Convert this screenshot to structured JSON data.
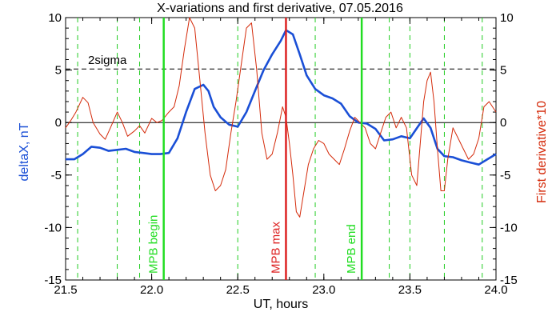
{
  "chart_data": {
    "type": "line",
    "title": "X-variations and first derivative, 07.05.2016",
    "xlabel": "UT, hours",
    "ylabel_left": "deltaX, nT",
    "ylabel_right": "First derivative*10",
    "xlim": [
      21.5,
      24.0
    ],
    "ylim": [
      -15,
      10
    ],
    "x_ticks": [
      21.5,
      22.0,
      22.5,
      23.0,
      23.5,
      24.0
    ],
    "x_tick_labels": [
      "21.5",
      "22.0",
      "22.5",
      "23.0",
      "23.5",
      "24.0"
    ],
    "y_ticks": [
      -15,
      -10,
      -5,
      0,
      5,
      10
    ],
    "y_tick_labels_left": [
      "-15",
      "-10",
      "-5",
      "0",
      "5",
      "10"
    ],
    "y_tick_labels_right": [
      "-15",
      "-10",
      "-5",
      "0",
      "5",
      "10"
    ],
    "grid": false,
    "threshold": {
      "label": "2sigma",
      "value": 5.1
    },
    "zero_line": 0,
    "dashed_vlines": [
      21.57,
      21.8,
      21.93,
      22.5,
      22.95,
      23.38,
      23.5,
      23.7,
      23.92
    ],
    "markers": [
      {
        "label": "MPB begin",
        "x": 22.07,
        "color": "#22dd22"
      },
      {
        "label": "MPB max",
        "x": 22.78,
        "color": "#dd2222"
      },
      {
        "label": "MPB end",
        "x": 23.22,
        "color": "#22dd22"
      }
    ],
    "series": [
      {
        "axis": "left",
        "color": "#1a4fd6",
        "x": [
          21.5,
          21.55,
          21.6,
          21.65,
          21.7,
          21.75,
          21.8,
          21.85,
          21.9,
          21.95,
          22.0,
          22.05,
          22.1,
          22.15,
          22.2,
          22.25,
          22.3,
          22.33,
          22.36,
          22.4,
          22.45,
          22.5,
          22.55,
          22.6,
          22.65,
          22.7,
          22.75,
          22.78,
          22.82,
          22.86,
          22.9,
          22.95,
          23.0,
          23.05,
          23.1,
          23.15,
          23.2,
          23.25,
          23.3,
          23.35,
          23.4,
          23.45,
          23.5,
          23.55,
          23.58,
          23.62,
          23.66,
          23.7,
          23.75,
          23.8,
          23.85,
          23.9,
          23.95,
          24.0
        ],
        "y": [
          -3.5,
          -3.5,
          -3.0,
          -2.3,
          -2.4,
          -2.7,
          -2.6,
          -2.5,
          -2.8,
          -2.9,
          -3.0,
          -3.0,
          -2.9,
          -1.5,
          1.0,
          3.2,
          3.6,
          3.0,
          1.5,
          0.5,
          -0.2,
          -0.4,
          1.0,
          3.0,
          5.0,
          6.5,
          7.8,
          8.8,
          8.4,
          6.5,
          4.5,
          3.2,
          2.6,
          2.3,
          1.8,
          0.6,
          0.0,
          -0.1,
          -0.6,
          -1.7,
          -1.6,
          -1.3,
          -1.5,
          -0.3,
          0.4,
          -0.5,
          -2.5,
          -3.2,
          -3.3,
          -3.6,
          -3.8,
          -4.0,
          -3.5,
          -3.0
        ]
      },
      {
        "axis": "right",
        "color": "#d42a0a",
        "x": [
          21.5,
          21.53,
          21.56,
          21.6,
          21.63,
          21.66,
          21.7,
          21.73,
          21.76,
          21.8,
          21.83,
          21.86,
          21.9,
          21.93,
          21.96,
          22.0,
          22.03,
          22.06,
          22.1,
          22.13,
          22.16,
          22.19,
          22.22,
          22.25,
          22.28,
          22.31,
          22.34,
          22.37,
          22.4,
          22.43,
          22.46,
          22.49,
          22.52,
          22.55,
          22.58,
          22.61,
          22.64,
          22.67,
          22.7,
          22.73,
          22.76,
          22.78,
          22.8,
          22.82,
          22.84,
          22.86,
          22.88,
          22.91,
          22.94,
          22.97,
          23.0,
          23.03,
          23.06,
          23.09,
          23.12,
          23.15,
          23.18,
          23.21,
          23.24,
          23.27,
          23.3,
          23.33,
          23.36,
          23.39,
          23.42,
          23.45,
          23.48,
          23.51,
          23.54,
          23.56,
          23.58,
          23.6,
          23.62,
          23.64,
          23.66,
          23.68,
          23.7,
          23.72,
          23.75,
          23.78,
          23.81,
          23.84,
          23.87,
          23.9,
          23.93,
          23.96,
          24.0
        ],
        "y": [
          -0.5,
          0.2,
          1.0,
          2.4,
          1.9,
          0.0,
          -1.1,
          -1.6,
          -0.5,
          1.0,
          0.0,
          -1.3,
          -0.8,
          -0.3,
          -1.0,
          0.4,
          0.0,
          0.2,
          1.0,
          1.5,
          3.5,
          7.0,
          10.0,
          9.0,
          4.0,
          -1.0,
          -5.0,
          -6.5,
          -6.0,
          -4.5,
          -1.0,
          2.0,
          5.5,
          9.0,
          9.5,
          5.0,
          -1.0,
          -3.5,
          -3.0,
          -1.0,
          1.5,
          0.5,
          -2.0,
          -5.0,
          -8.5,
          -9.0,
          -7.0,
          -4.0,
          -2.5,
          -1.7,
          -2.0,
          -3.0,
          -3.5,
          -4.0,
          -2.5,
          -0.8,
          0.5,
          0.0,
          -0.5,
          -2.0,
          -2.5,
          -1.0,
          0.5,
          1.0,
          -0.5,
          0.5,
          -0.5,
          -5.0,
          -6.0,
          -2.0,
          2.0,
          4.0,
          4.8,
          2.0,
          -2.5,
          -6.5,
          -6.5,
          -3.5,
          -0.5,
          -1.5,
          -2.5,
          -3.5,
          -3.0,
          -1.5,
          1.5,
          2.0,
          1.0
        ]
      }
    ]
  }
}
